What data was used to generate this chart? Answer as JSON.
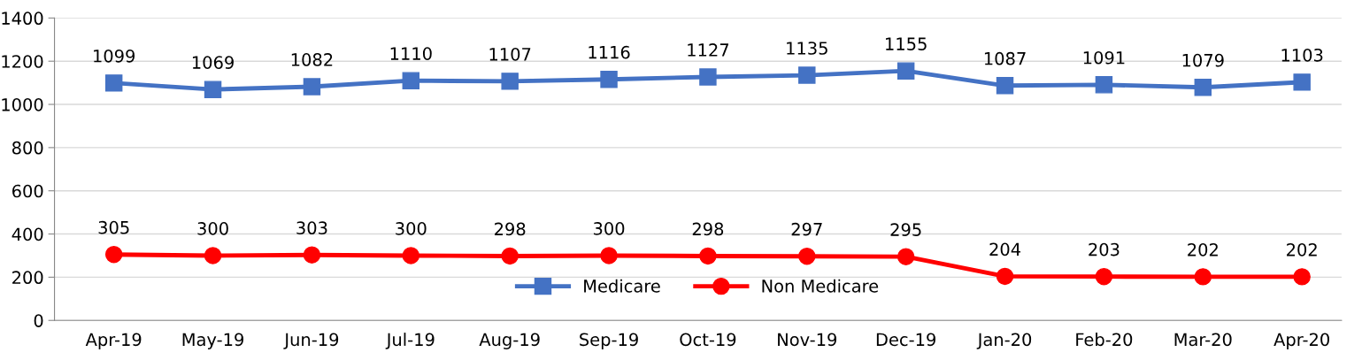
{
  "chart_data": {
    "type": "line",
    "categories": [
      "Apr-19",
      "May-19",
      "Jun-19",
      "Jul-19",
      "Aug-19",
      "Sep-19",
      "Oct-19",
      "Nov-19",
      "Dec-19",
      "Jan-20",
      "Feb-20",
      "Mar-20",
      "Apr-20"
    ],
    "series": [
      {
        "name": "Medicare",
        "color": "#4472c4",
        "marker": "square",
        "values": [
          1099,
          1069,
          1082,
          1110,
          1107,
          1116,
          1127,
          1135,
          1155,
          1087,
          1091,
          1079,
          1103
        ]
      },
      {
        "name": "Non Medicare",
        "color": "#ff0000",
        "marker": "circle",
        "values": [
          305,
          300,
          303,
          300,
          298,
          300,
          298,
          297,
          295,
          204,
          203,
          202,
          202
        ]
      }
    ],
    "ylim": [
      0,
      1400
    ],
    "yticks": [
      0,
      200,
      400,
      600,
      800,
      1000,
      1200,
      1400
    ],
    "grid": "y",
    "legend": "bottom",
    "data_labels": true,
    "line_style": "solid"
  }
}
